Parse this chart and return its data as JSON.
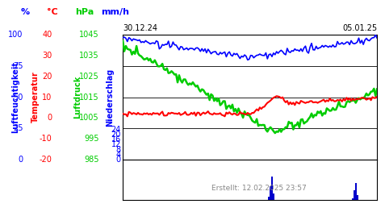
{
  "date_left": "30.12.24",
  "date_right": "05.01.25",
  "footer": "Erstellt: 12.02.2025 23:57",
  "n_points": 168,
  "hum_min": 0,
  "hum_max": 100,
  "temp_min": -20,
  "temp_max": 40,
  "pres_min": 985,
  "pres_max": 1045,
  "prec_min": 0,
  "prec_max": 24,
  "hum_ticks": [
    0,
    25,
    50,
    75,
    100
  ],
  "temp_ticks": [
    -20,
    -10,
    0,
    10,
    20,
    30,
    40
  ],
  "pres_ticks": [
    985,
    995,
    1005,
    1015,
    1025,
    1035,
    1045
  ],
  "prec_ticks": [
    0,
    4,
    8,
    12,
    16,
    20,
    24
  ],
  "color_hum": "#0000ff",
  "color_temp": "#ff0000",
  "color_pres": "#00cc00",
  "color_prec": "#0000cc",
  "bg_color": "#ffffff",
  "grid_color": "#000000",
  "label_hum": "Luftfeuchtigkeit",
  "label_temp": "Temperatur",
  "label_pres": "Luftdruck",
  "label_prec": "Niederschlag",
  "unit_hum": "%",
  "unit_temp": "°C",
  "unit_pres": "hPa",
  "unit_prec": "mm/h"
}
